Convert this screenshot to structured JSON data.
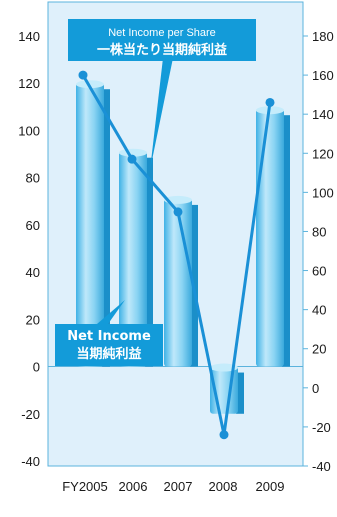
{
  "chart_data": {
    "type": "bar",
    "categories": [
      "FY2005",
      "2006",
      "2007",
      "2008",
      "2009"
    ],
    "series": [
      {
        "name": "Net Income 当期純利益",
        "axis": "left",
        "values": [
          120,
          91,
          71,
          -20,
          109
        ]
      },
      {
        "name": "Net Income per Share 一株当たり当期純利益",
        "axis": "right",
        "type": "line",
        "values": [
          160,
          117,
          90,
          -24,
          146
        ]
      }
    ],
    "left_axis": {
      "ylim": [
        -40,
        140
      ],
      "ticks": [
        140,
        120,
        100,
        80,
        60,
        40,
        20,
        0,
        -20,
        -40
      ]
    },
    "right_axis": {
      "ylim": [
        -40,
        180
      ],
      "ticks": [
        180,
        160,
        140,
        120,
        100,
        80,
        60,
        40,
        20,
        0,
        -20,
        -40
      ]
    },
    "legend_boxes": {
      "eps": {
        "line1": "Net Income per Share",
        "line2": "一株当たり当期純利益"
      },
      "ni": {
        "line1": "Net Income",
        "line2": "当期純利益"
      }
    },
    "colors": {
      "plot_bg": "#dff0fb",
      "frame": "#5bb3dd",
      "bar": "#6cc6ee",
      "bar_shadow": "#1b8fc9",
      "line": "#1a90d6",
      "label_bg": "#139bd9"
    }
  }
}
